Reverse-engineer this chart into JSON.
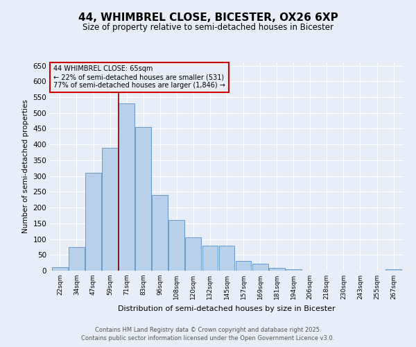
{
  "title_line1": "44, WHIMBREL CLOSE, BICESTER, OX26 6XP",
  "title_line2": "Size of property relative to semi-detached houses in Bicester",
  "xlabel": "Distribution of semi-detached houses by size in Bicester",
  "ylabel": "Number of semi-detached properties",
  "bar_labels": [
    "22sqm",
    "34sqm",
    "47sqm",
    "59sqm",
    "71sqm",
    "83sqm",
    "96sqm",
    "108sqm",
    "120sqm",
    "132sqm",
    "145sqm",
    "157sqm",
    "169sqm",
    "181sqm",
    "194sqm",
    "206sqm",
    "218sqm",
    "230sqm",
    "243sqm",
    "255sqm",
    "267sqm"
  ],
  "bar_values": [
    10,
    75,
    310,
    390,
    530,
    455,
    240,
    160,
    105,
    80,
    80,
    30,
    22,
    9,
    4,
    0,
    0,
    0,
    0,
    0,
    4
  ],
  "bar_color": "#b8d0ea",
  "bar_edge_color": "#6699cc",
  "property_line_x": 3.5,
  "annotation_title": "44 WHIMBREL CLOSE: 65sqm",
  "annotation_line1": "← 22% of semi-detached houses are smaller (531)",
  "annotation_line2": "77% of semi-detached houses are larger (1,846) →",
  "annotation_box_color": "#cc0000",
  "vline_color": "#8b0000",
  "ylim": [
    0,
    660
  ],
  "yticks": [
    0,
    50,
    100,
    150,
    200,
    250,
    300,
    350,
    400,
    450,
    500,
    550,
    600,
    650
  ],
  "background_color": "#e8eef7",
  "footer_line1": "Contains HM Land Registry data © Crown copyright and database right 2025.",
  "footer_line2": "Contains public sector information licensed under the Open Government Licence v3.0."
}
